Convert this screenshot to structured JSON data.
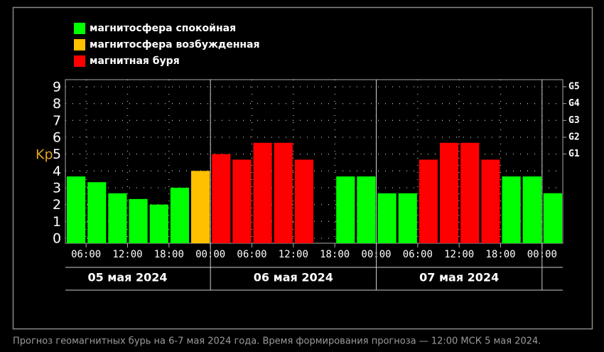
{
  "chart_data": {
    "type": "bar",
    "legend_position": "top-left",
    "y_label": "Kp",
    "x": [
      3,
      6,
      9,
      12,
      15,
      18,
      21,
      24,
      27,
      30,
      33,
      36,
      39,
      42,
      45,
      48,
      51,
      54,
      57,
      60,
      63,
      66,
      69,
      72
    ],
    "series": [
      {
        "name": "магнитосфера спокойная",
        "color": "#00ff00",
        "values": [
          3.67,
          3.33,
          2.67,
          2.33,
          2.0,
          3.0,
          null,
          null,
          null,
          null,
          null,
          null,
          null,
          3.67,
          3.67,
          2.67,
          2.67,
          null,
          null,
          null,
          null,
          3.67,
          3.67,
          2.67
        ]
      },
      {
        "name": "магнитосфера возбужденная",
        "color": "#ffc000",
        "values": [
          null,
          null,
          null,
          null,
          null,
          null,
          4.0,
          null,
          null,
          null,
          null,
          null,
          null,
          null,
          null,
          null,
          null,
          null,
          null,
          null,
          null,
          null,
          null,
          null
        ]
      },
      {
        "name": "магнитная буря",
        "color": "#ff0000",
        "values": [
          null,
          null,
          null,
          null,
          null,
          null,
          null,
          5.0,
          4.67,
          5.67,
          5.67,
          4.67,
          null,
          null,
          null,
          null,
          null,
          4.67,
          5.67,
          5.67,
          4.67,
          null,
          null,
          null
        ]
      }
    ],
    "last_value": 2.67,
    "xlim": [
      3,
      75
    ],
    "xticks": [
      {
        "value": 6,
        "label": "06:00"
      },
      {
        "value": 12,
        "label": "12:00"
      },
      {
        "value": 18,
        "label": "18:00"
      },
      {
        "value": 24,
        "label": "00:00"
      },
      {
        "value": 30,
        "label": "06:00"
      },
      {
        "value": 36,
        "label": "12:00"
      },
      {
        "value": 42,
        "label": "18:00"
      },
      {
        "value": 48,
        "label": "00:00"
      },
      {
        "value": 54,
        "label": "06:00"
      },
      {
        "value": 60,
        "label": "12:00"
      },
      {
        "value": 66,
        "label": "18:00"
      },
      {
        "value": 72,
        "label": "00:00"
      }
    ],
    "ylim": [
      0,
      9
    ],
    "yticks": [
      0,
      1,
      2,
      3,
      4,
      5,
      6,
      7,
      8,
      9
    ],
    "gticks": [
      {
        "value": 5,
        "label": "G1"
      },
      {
        "value": 6,
        "label": "G2"
      },
      {
        "value": 7,
        "label": "G3"
      },
      {
        "value": 8,
        "label": "G4"
      },
      {
        "value": 9,
        "label": "G5"
      }
    ],
    "days": [
      "05 мая 2024",
      "06 мая 2024",
      "07 мая 2024"
    ],
    "grid": true,
    "caption": "Прогноз геомагнитных бурь на 6-7 мая 2024 года. Время формирования прогноза — 12:00 МСК 5 мая 2024."
  }
}
